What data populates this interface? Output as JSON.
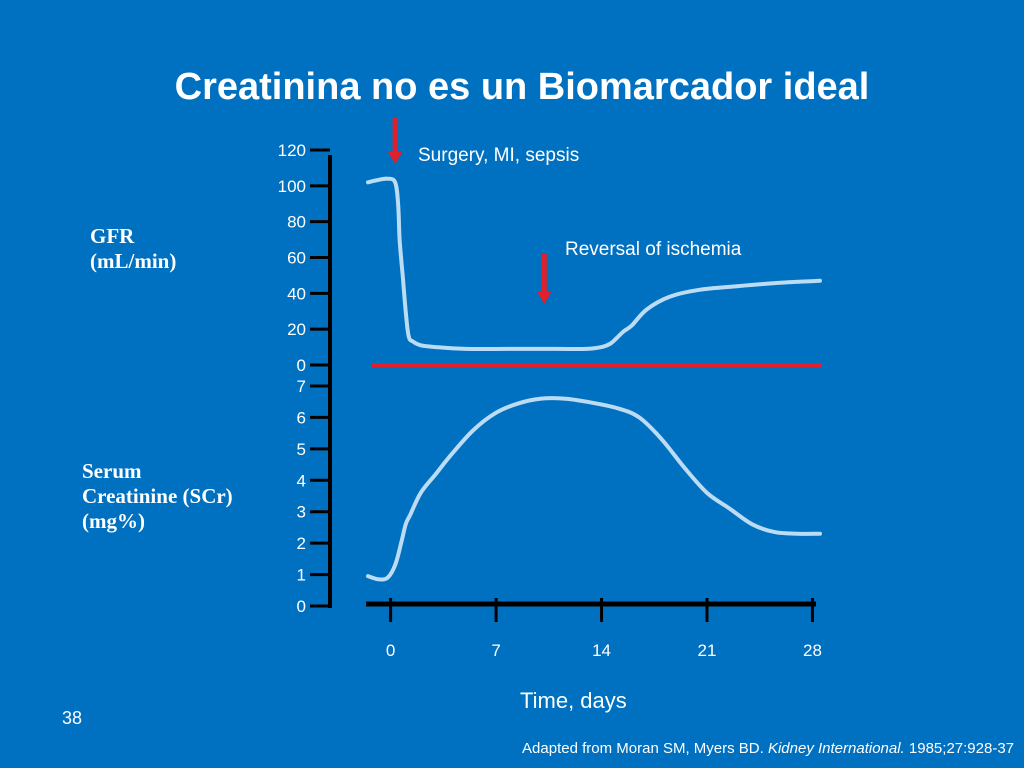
{
  "slide": {
    "title": "Creatinina no es un Biomarcador ideal",
    "slide_number": "38",
    "citation": {
      "prefix": "Adapted from Moran SM, Myers BD. ",
      "journal": "Kidney International.",
      "suffix": " 1985;27:928-37"
    }
  },
  "colors": {
    "background": "#0070c0",
    "curve": "#bcdcf4",
    "separator": "#e0202a",
    "arrow": "#e0202a",
    "axis": "#000000",
    "text": "#ffffff"
  },
  "chart_data": {
    "type": "line",
    "x_axis": {
      "label": "Time, days",
      "ticks": [
        0,
        7,
        14,
        21,
        28
      ],
      "range": [
        -1.5,
        28.5
      ]
    },
    "panels": [
      {
        "name": "gfr",
        "ylabel_lines": [
          "GFR",
          "(mL/min)"
        ],
        "yticks": [
          0,
          20,
          40,
          60,
          80,
          100,
          120
        ],
        "ylim": [
          0,
          120
        ],
        "series": [
          {
            "x": [
              -1.5,
              -1.0,
              -0.2,
              0.3,
              0.5,
              0.6,
              0.8,
              1.0,
              1.2,
              1.5,
              2.0,
              3.0,
              5.0,
              8.0,
              11.0,
              13.0,
              14.0,
              14.6,
              15.0,
              15.5,
              16.0,
              17.0,
              18.5,
              20.5,
              23.0,
              26.0,
              28.5
            ],
            "y": [
              102,
              103,
              104,
              102,
              90,
              70,
              50,
              30,
              16,
              13,
              11,
              10,
              9,
              9,
              9,
              9,
              10,
              12,
              15,
              19,
              22,
              31,
              38,
              42,
              44,
              46,
              47
            ]
          }
        ]
      },
      {
        "name": "scr",
        "ylabel_lines": [
          "Serum",
          "Creatinine (SCr)",
          "(mg%)"
        ],
        "yticks": [
          0,
          1,
          2,
          3,
          4,
          5,
          6,
          7
        ],
        "ylim": [
          0,
          7
        ],
        "series": [
          {
            "x": [
              -1.5,
              -0.8,
              -0.2,
              0.3,
              0.7,
              1.0,
              1.3,
              2.0,
              3.0,
              4.0,
              5.5,
              7.0,
              8.5,
              10.0,
              11.5,
              13.0,
              15.0,
              16.5,
              18.0,
              19.5,
              21.0,
              22.5,
              24.0,
              25.5,
              27.0,
              28.5
            ],
            "y": [
              0.95,
              0.85,
              0.9,
              1.3,
              2.0,
              2.6,
              2.9,
              3.6,
              4.2,
              4.8,
              5.6,
              6.15,
              6.45,
              6.6,
              6.6,
              6.5,
              6.3,
              6.0,
              5.3,
              4.4,
              3.6,
              3.1,
              2.6,
              2.35,
              2.3,
              2.3
            ]
          }
        ]
      }
    ],
    "annotations": [
      {
        "text": "Surgery, MI, sepsis",
        "x": 0.3
      },
      {
        "text": "Reversal of ischemia",
        "x": 10.2
      }
    ]
  }
}
